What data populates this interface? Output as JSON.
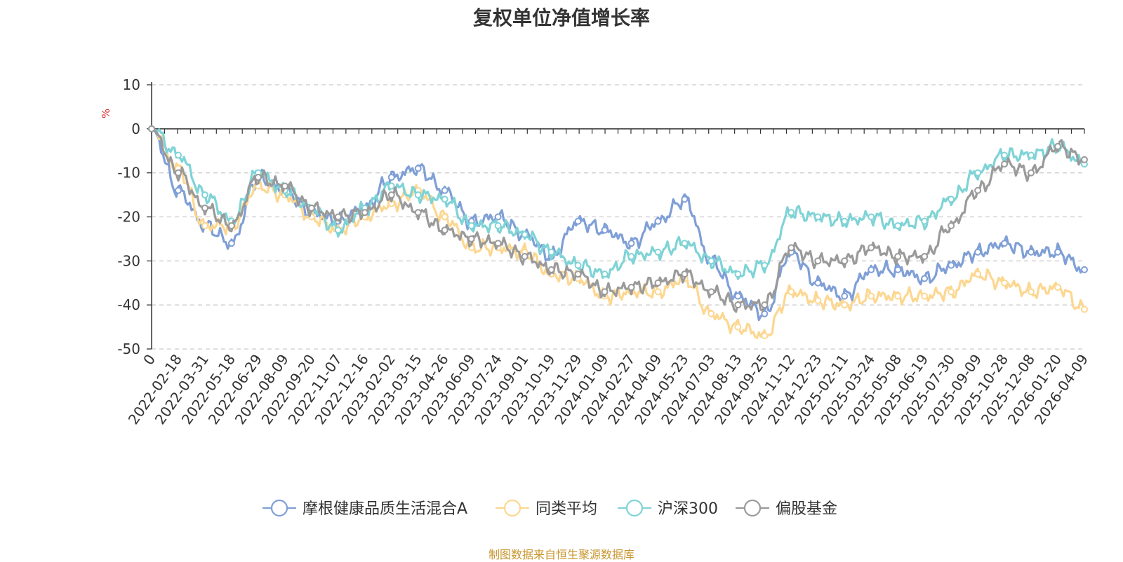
{
  "chart_data": {
    "type": "line",
    "title": "复权单位净值增长率",
    "ylabel": "%",
    "ylim": [
      -50,
      10
    ],
    "yticks": [
      10,
      0,
      -10,
      -20,
      -30,
      -40,
      -50
    ],
    "grid": true,
    "legend_position": "bottom",
    "x_tick_labels": [
      "0",
      "2022-02-18",
      "2022-03-31",
      "2022-05-18",
      "2022-06-29",
      "2022-08-09",
      "2022-09-20",
      "2022-11-07",
      "2022-12-16",
      "2023-02-02",
      "2023-03-15",
      "2023-04-26",
      "2023-06-09",
      "2023-07-24",
      "2023-09-01",
      "2023-10-19",
      "2023-11-29",
      "2024-01-09",
      "2024-02-27",
      "2024-04-09",
      "2024-05-23",
      "2024-07-03",
      "2024-08-13",
      "2024-09-25",
      "2024-11-12",
      "2024-12-23",
      "2025-02-11",
      "2025-03-24",
      "2025-05-08",
      "2025-06-19",
      "2025-07-30",
      "2025-09-09",
      "2025-10-28",
      "2025-12-08",
      "2026-01-20",
      "2026-04-09"
    ],
    "source": "制图数据来自恒生聚源数据库",
    "series": [
      {
        "name": "摩根健康品质生活混合A",
        "color": "#7f9fd6",
        "values": [
          0,
          -14,
          -22,
          -26,
          -11,
          -14,
          -19,
          -21,
          -18,
          -11,
          -9,
          -14,
          -21,
          -20,
          -24,
          -29,
          -21,
          -23,
          -26,
          -21,
          -16,
          -30,
          -38,
          -42,
          -28,
          -35,
          -38,
          -32,
          -32,
          -34,
          -31,
          -28,
          -26,
          -28,
          -28,
          -32
        ]
      },
      {
        "name": "同类平均",
        "color": "#fcd791",
        "values": [
          0,
          -9,
          -22,
          -22,
          -13,
          -15,
          -20,
          -23,
          -20,
          -17,
          -14,
          -20,
          -27,
          -27,
          -28,
          -33,
          -34,
          -38,
          -37,
          -37,
          -34,
          -42,
          -45,
          -47,
          -37,
          -39,
          -40,
          -38,
          -38,
          -38,
          -37,
          -33,
          -35,
          -37,
          -36,
          -41
        ]
      },
      {
        "name": "沪深300",
        "color": "#7fd3d6",
        "values": [
          0,
          -6,
          -15,
          -21,
          -10,
          -14,
          -18,
          -23,
          -18,
          -13,
          -15,
          -16,
          -22,
          -22,
          -24,
          -28,
          -31,
          -33,
          -29,
          -28,
          -26,
          -30,
          -33,
          -31,
          -19,
          -20,
          -21,
          -20,
          -22,
          -21,
          -16,
          -10,
          -6,
          -6,
          -4,
          -8
        ]
      },
      {
        "name": "偏股基金",
        "color": "#9a9a9a",
        "values": [
          0,
          -10,
          -18,
          -22,
          -11,
          -13,
          -18,
          -20,
          -19,
          -15,
          -19,
          -23,
          -25,
          -26,
          -29,
          -32,
          -33,
          -37,
          -36,
          -35,
          -33,
          -37,
          -40,
          -40,
          -27,
          -30,
          -30,
          -27,
          -29,
          -29,
          -22,
          -14,
          -8,
          -10,
          -4,
          -7
        ]
      }
    ]
  }
}
